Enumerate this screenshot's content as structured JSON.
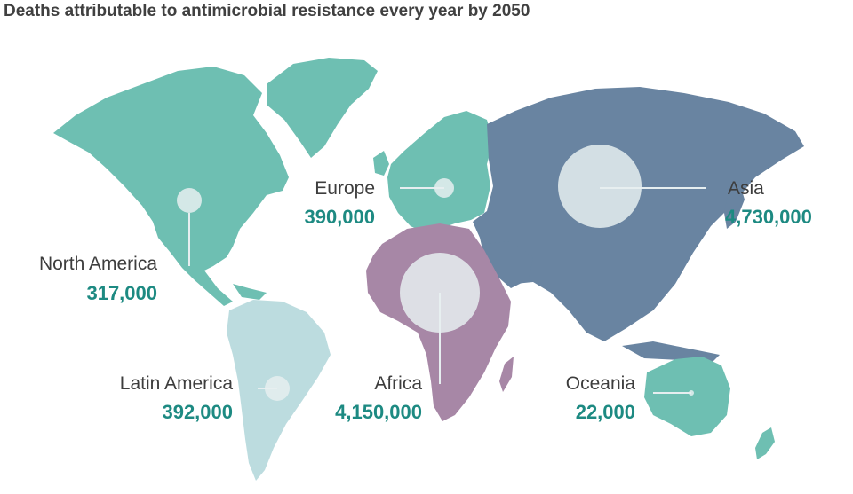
{
  "title": "Deaths attributable to antimicrobial resistance every year by 2050",
  "colors": {
    "americas_europe_oceania": "#6ebfb2",
    "latin_america": "#bcdcdf",
    "asia": "#6984a1",
    "africa": "#a787a6",
    "bubble": "#e6eef0",
    "value_text": "#1d8a82",
    "label_text": "#3d3d3d"
  },
  "regions": [
    {
      "id": "north-america",
      "name": "North America",
      "value": "317,000"
    },
    {
      "id": "latin-america",
      "name": "Latin America",
      "value": "392,000"
    },
    {
      "id": "europe",
      "name": "Europe",
      "value": "390,000"
    },
    {
      "id": "africa",
      "name": "Africa",
      "value": "4,150,000"
    },
    {
      "id": "asia",
      "name": "Asia",
      "value": "4,730,000"
    },
    {
      "id": "oceania",
      "name": "Oceania",
      "value": "22,000"
    }
  ]
}
